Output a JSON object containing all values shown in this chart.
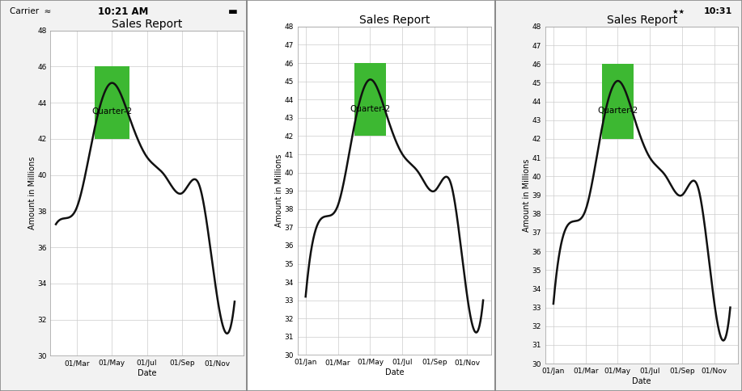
{
  "title": "Sales Report",
  "xlabel": "Date",
  "ylabel": "Amount in Millions",
  "strip_label": "Quarter-2",
  "strip_color": "#3db832",
  "strip_alpha": 1.0,
  "line_color": "#111111",
  "line_width": 1.8,
  "bg_color": "#ffffff",
  "grid_color": "#cccccc",
  "yticks_chart1": [
    30,
    32,
    34,
    36,
    38,
    40,
    42,
    44,
    46,
    48
  ],
  "yticks_chart23": [
    30,
    31,
    32,
    33,
    34,
    35,
    36,
    37,
    38,
    39,
    40,
    41,
    42,
    43,
    44,
    45,
    46,
    47,
    48
  ],
  "xticks_chart1_labels": [
    "01/Mar",
    "01/May",
    "01/Jul",
    "01/Sep",
    "01/Nov"
  ],
  "xticks_chart1_pos": [
    3,
    5,
    7,
    9,
    11
  ],
  "xticks_chart23_labels": [
    "01/Jan",
    "01/Mar",
    "01/May",
    "01/Jul",
    "01/Sep",
    "01/Nov"
  ],
  "xticks_chart23_pos": [
    1,
    3,
    5,
    7,
    9,
    11
  ],
  "xlim_chart1": [
    1.5,
    12.5
  ],
  "xlim_chart23": [
    0.5,
    12.5
  ],
  "ylim": [
    30,
    48
  ],
  "strip_x1": 4.0,
  "strip_x2": 6.0,
  "strip_y1": 42.0,
  "strip_y2": 46.0,
  "font_size_title": 10,
  "font_size_ticks": 6.5,
  "font_size_strip": 7.5,
  "font_size_axis_label": 7,
  "status1_bg": "#f2f2f2",
  "status2_bg": "#1a1a1a",
  "status3_bg": "#f2f2f2",
  "nav2_bg": "#1a1a1a",
  "panel_bg": "#ffffff",
  "x_months": [
    1,
    2,
    3,
    4,
    5,
    6,
    7,
    8,
    9,
    10,
    11,
    12
  ],
  "y_vals": [
    33.2,
    37.5,
    38.2,
    42.5,
    45.1,
    43.2,
    41.0,
    40.0,
    39.0,
    39.4,
    33.3,
    33.0
  ]
}
